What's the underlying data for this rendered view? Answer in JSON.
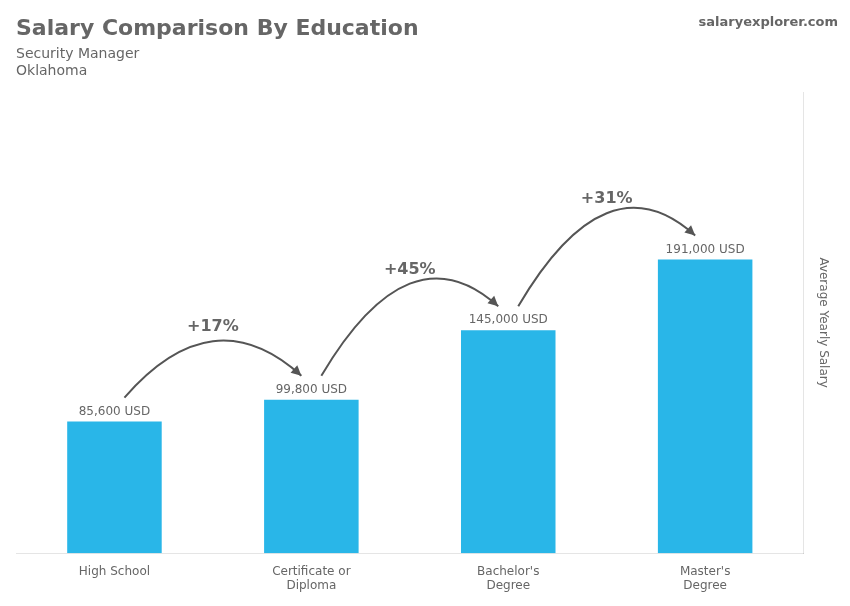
{
  "chart_data": {
    "type": "bar",
    "title": "Salary Comparison By Education",
    "subtitle": [
      "Security Manager",
      "Oklahoma"
    ],
    "ylabel": "Average Yearly Salary",
    "categories": [
      "High School",
      "Certificate or\nDiploma",
      "Bachelor's\nDegree",
      "Master's\nDegree"
    ],
    "values": [
      85600,
      99800,
      145000,
      191000
    ],
    "value_labels": [
      "85,600 USD",
      "99,800 USD",
      "145,000 USD",
      "191,000 USD"
    ],
    "data_labels": true,
    "color": "#29b6e8",
    "ylim": [
      0,
      300000
    ],
    "grid": false,
    "tick_labels": "x",
    "annotations": [
      {
        "text": "+17%",
        "from": "High School",
        "to": "Certificate or\nDiploma"
      },
      {
        "text": "+45%",
        "from": "Certificate or\nDiploma",
        "to": "Bachelor's\nDegree"
      },
      {
        "text": "+31%",
        "from": "Bachelor's\nDegree",
        "to": "Master's\nDegree"
      },
      {
        "text": "salaryexplorer.com"
      }
    ]
  }
}
